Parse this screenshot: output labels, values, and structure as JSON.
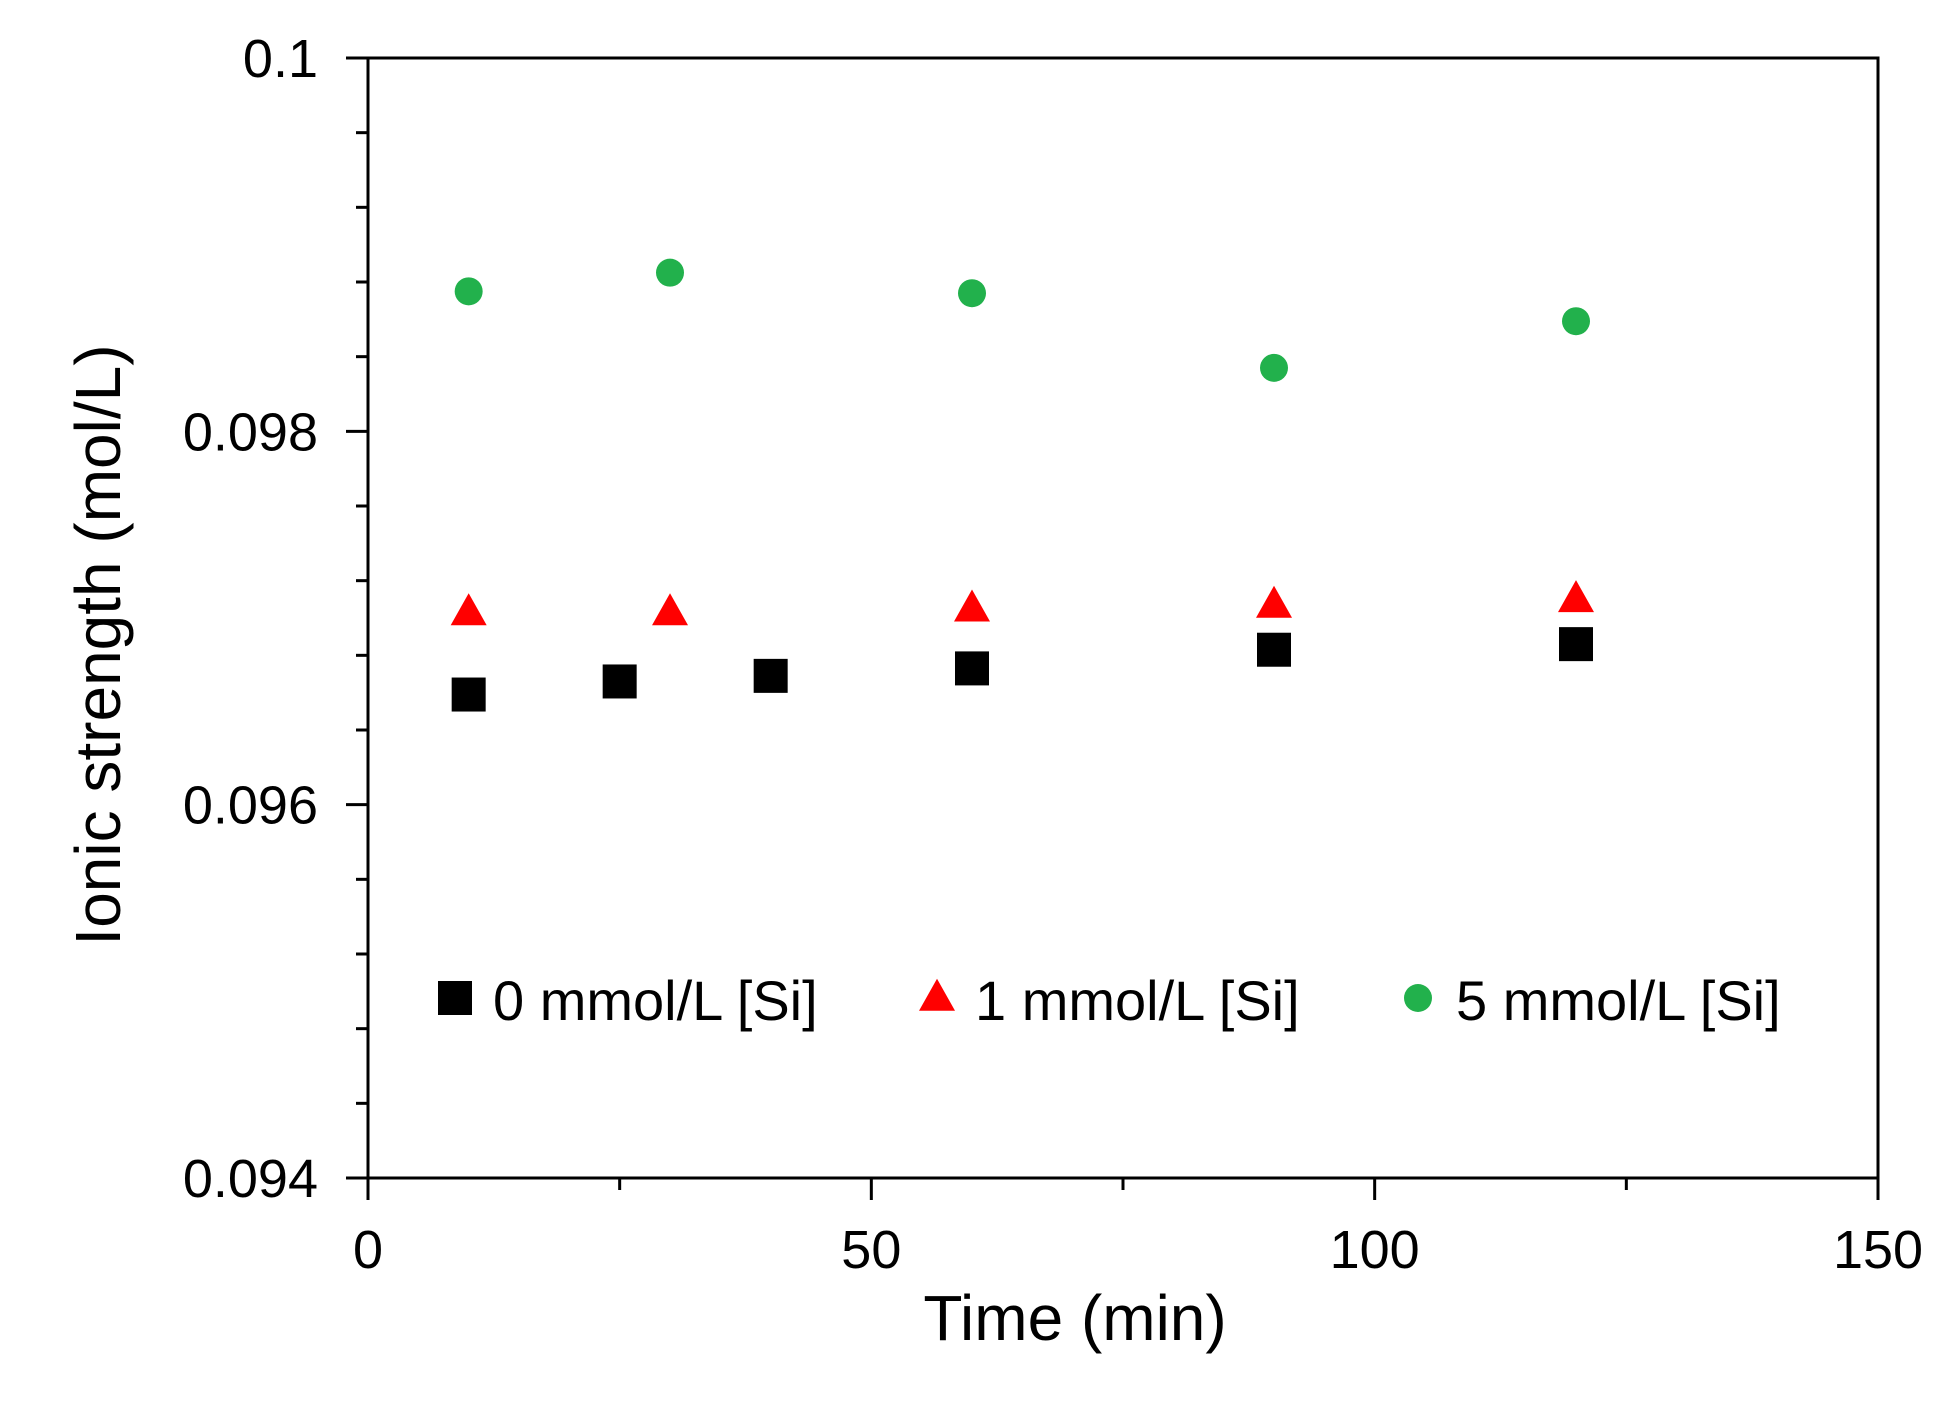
{
  "chart_data": {
    "type": "scatter",
    "title": "",
    "xlabel": "Time (min)",
    "ylabel": "Ionic strength (mol/L)",
    "xlim": [
      0,
      150
    ],
    "ylim": [
      0.094,
      0.1
    ],
    "x_ticks": [
      0,
      50,
      100,
      150
    ],
    "x_tick_labels": [
      "0",
      "50",
      "100",
      "150"
    ],
    "x_minor_step": 25,
    "y_ticks": [
      0.094,
      0.096,
      0.098,
      0.1
    ],
    "y_tick_labels": [
      "0.094",
      "0.096",
      "0.098",
      "0.1"
    ],
    "y_minor_step": 0.0004,
    "grid": false,
    "legend_position": "lower-center, inside plot, single row",
    "series": [
      {
        "name": "0 mmol/L [Si]",
        "marker": "square",
        "color": "#000000",
        "x": [
          10,
          25,
          40,
          60,
          90,
          120
        ],
        "y": [
          0.09659,
          0.09666,
          0.09669,
          0.09673,
          0.09683,
          0.09686
        ]
      },
      {
        "name": "1 mmol/L [Si]",
        "marker": "triangle",
        "color": "#ff0000",
        "x": [
          10,
          30,
          60,
          90,
          120
        ],
        "y": [
          0.09703,
          0.09703,
          0.09705,
          0.09707,
          0.0971
        ]
      },
      {
        "name": "5 mmol/L [Si]",
        "marker": "circle",
        "color": "#22b14c",
        "x": [
          10,
          30,
          60,
          90,
          120
        ],
        "y": [
          0.09875,
          0.09885,
          0.09874,
          0.09834,
          0.09859
        ]
      }
    ]
  }
}
